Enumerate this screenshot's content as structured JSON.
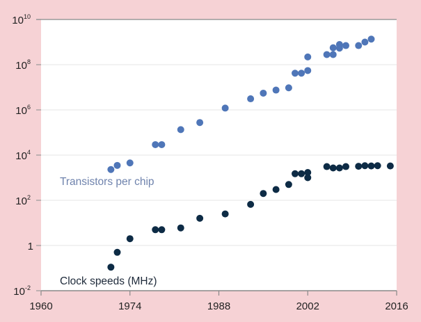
{
  "chart_data": {
    "type": "scatter",
    "title": "",
    "xlabel": "",
    "ylabel": "",
    "xlim": [
      1960,
      2016
    ],
    "ylim": [
      0.01,
      10000000000
    ],
    "yscale": "log",
    "grid": true,
    "x_ticks": [
      {
        "value": 1960,
        "label": "1960"
      },
      {
        "value": 1974,
        "label": "1974"
      },
      {
        "value": 1988,
        "label": "1988"
      },
      {
        "value": 2002,
        "label": "2002"
      },
      {
        "value": 2016,
        "label": "2016"
      }
    ],
    "y_ticks": [
      {
        "exp": 10,
        "base": "10",
        "sup": "10"
      },
      {
        "exp": 8,
        "base": "10",
        "sup": "8"
      },
      {
        "exp": 6,
        "base": "10",
        "sup": "6"
      },
      {
        "exp": 4,
        "base": "10",
        "sup": "4"
      },
      {
        "exp": 2,
        "base": "10",
        "sup": "2"
      },
      {
        "exp": 0,
        "base": "1",
        "sup": ""
      },
      {
        "exp": -2,
        "base": "10",
        "sup": "-2"
      }
    ],
    "series": [
      {
        "name": "Transistors per chip",
        "color": "#4f76b8",
        "points": [
          [
            1971,
            2300
          ],
          [
            1972,
            3500
          ],
          [
            1974,
            4500
          ],
          [
            1978,
            29000
          ],
          [
            1979,
            29000
          ],
          [
            1982,
            134000
          ],
          [
            1985,
            275000
          ],
          [
            1989,
            1200000
          ],
          [
            1993,
            3100000
          ],
          [
            1995,
            5500000
          ],
          [
            1997,
            7500000
          ],
          [
            1999,
            9500000
          ],
          [
            2000,
            42000000
          ],
          [
            2001,
            42000000
          ],
          [
            2002,
            55000000
          ],
          [
            2002,
            220000000
          ],
          [
            2005,
            280000000
          ],
          [
            2006,
            280000000
          ],
          [
            2006,
            560000000
          ],
          [
            2007,
            780000000
          ],
          [
            2007,
            540000000
          ],
          [
            2008,
            700000000
          ],
          [
            2010,
            700000000
          ],
          [
            2011,
            1000000000
          ],
          [
            2012,
            1350000000
          ]
        ]
      },
      {
        "name": "Clock speeds (MHz)",
        "color": "#0d2b45",
        "points": [
          [
            1971,
            0.11
          ],
          [
            1972,
            0.5
          ],
          [
            1974,
            2
          ],
          [
            1978,
            5
          ],
          [
            1979,
            5
          ],
          [
            1982,
            6
          ],
          [
            1985,
            16
          ],
          [
            1989,
            25
          ],
          [
            1993,
            66
          ],
          [
            1995,
            200
          ],
          [
            1997,
            300
          ],
          [
            1999,
            500
          ],
          [
            2000,
            1500
          ],
          [
            2001,
            1500
          ],
          [
            2002,
            1700
          ],
          [
            2002,
            1000
          ],
          [
            2005,
            3100
          ],
          [
            2006,
            2700
          ],
          [
            2007,
            2700
          ],
          [
            2008,
            3100
          ],
          [
            2010,
            3200
          ],
          [
            2011,
            3400
          ],
          [
            2012,
            3300
          ],
          [
            2013,
            3400
          ],
          [
            2015,
            3300
          ]
        ]
      }
    ],
    "labels": {
      "transistors": "Transistors per chip",
      "clock": "Clock speeds (MHz)"
    }
  }
}
